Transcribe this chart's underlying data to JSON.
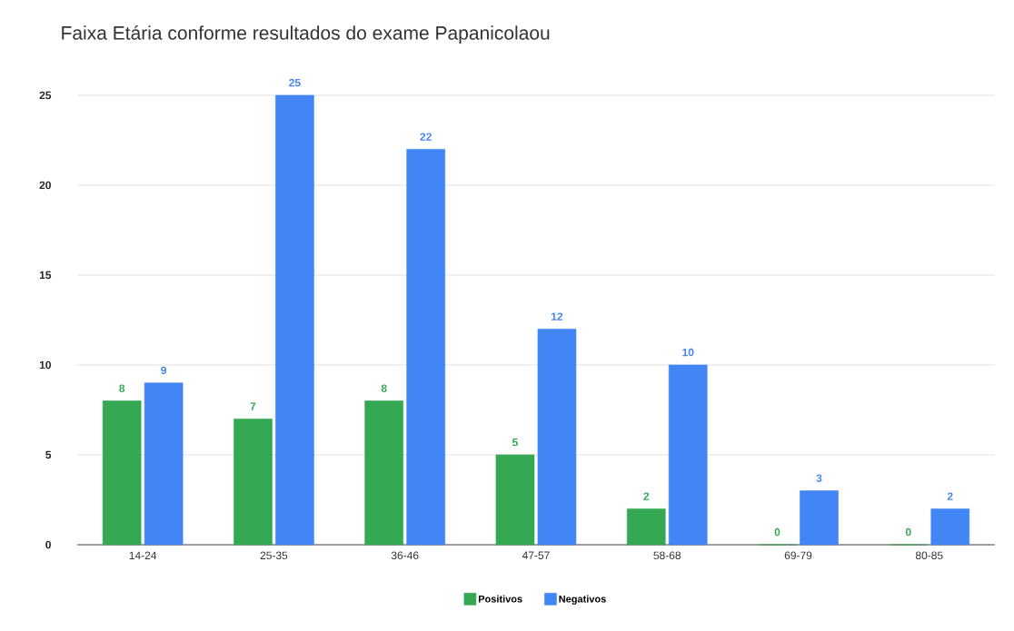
{
  "chart_data": {
    "type": "bar",
    "title": "Faixa Etária conforme resultados do exame Papanicolaou",
    "categories": [
      "14-24",
      "25-35",
      "36-46",
      "47-57",
      "58-68",
      "69-79",
      "80-85"
    ],
    "series": [
      {
        "name": "Positivos",
        "color": "#34a853",
        "values": [
          8,
          7,
          8,
          5,
          2,
          0,
          0
        ]
      },
      {
        "name": "Negativos",
        "color": "#4285f4",
        "values": [
          9,
          25,
          22,
          12,
          10,
          3,
          2
        ]
      }
    ],
    "ylim": [
      0,
      25
    ],
    "yticks": [
      0,
      5,
      10,
      15,
      20,
      25
    ],
    "grid": "y",
    "legend": "bottom",
    "data_labels": true
  }
}
